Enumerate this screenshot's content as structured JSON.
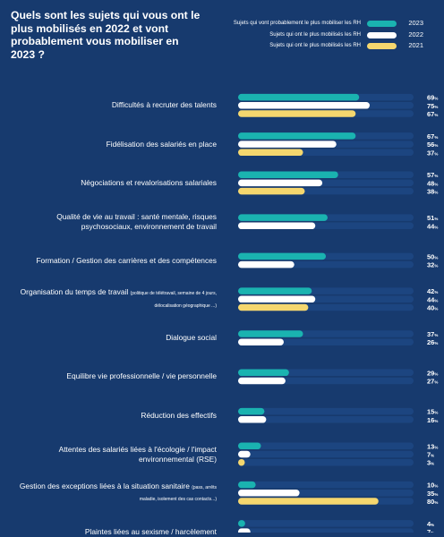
{
  "chart_data": {
    "type": "bar",
    "orientation": "horizontal",
    "title": "Quels sont les sujets qui vous ont le plus mobilisés en 2022 et vont probablement vous mobiliser en 2023 ?",
    "legend_position": "top-right",
    "categories": [
      {
        "main": "Difficultés à recruter des talents",
        "note": ""
      },
      {
        "main": "Fidélisation des salariés en place",
        "note": ""
      },
      {
        "main": "Négociations et revalorisations salariales",
        "note": ""
      },
      {
        "main": "Qualité de vie au travail : santé mentale, risques psychosociaux, environnement de travail",
        "note": ""
      },
      {
        "main": "Formation / Gestion des carrières et des compétences",
        "note": ""
      },
      {
        "main": "Organisation du temps de travail",
        "note": "(politique de télétravail, semaine de 4 jours, délocalisation géographique ...)"
      },
      {
        "main": "Dialogue social",
        "note": ""
      },
      {
        "main": "Equilibre vie professionnelle / vie personnelle",
        "note": ""
      },
      {
        "main": "Réduction des effectifs",
        "note": ""
      },
      {
        "main": "Attentes des salariés liées à l'écologie / l'impact environnemental (RSE)",
        "note": ""
      },
      {
        "main": "Gestion des exceptions liées à la situation sanitaire",
        "note": "(pass, arrêts maladie, isolement des cas contacts...)"
      },
      {
        "main": "Plaintes liées au sexisme / harcèlement",
        "note": ""
      }
    ],
    "series": [
      {
        "name": "Sujets qui vont probablement le plus mobiliser les RH",
        "year": "2023",
        "color": "#1ab3b0",
        "values": [
          69,
          67,
          57,
          51,
          50,
          42,
          37,
          29,
          15,
          13,
          10,
          4
        ]
      },
      {
        "name": "Sujets qui ont le plus mobilisés les RH",
        "year": "2022",
        "color": "#ffffff",
        "values": [
          75,
          56,
          48,
          44,
          32,
          44,
          26,
          27,
          16,
          7,
          35,
          7
        ]
      },
      {
        "name": "Sujets qui ont le plus mobilisés les RH",
        "year": "2021",
        "color": "#f5d76e",
        "values": [
          67,
          37,
          38,
          null,
          null,
          40,
          null,
          null,
          null,
          3,
          80,
          5
        ]
      }
    ],
    "value_suffix": "%",
    "xlim": [
      0,
      100
    ],
    "track_color": "#1c4580"
  }
}
